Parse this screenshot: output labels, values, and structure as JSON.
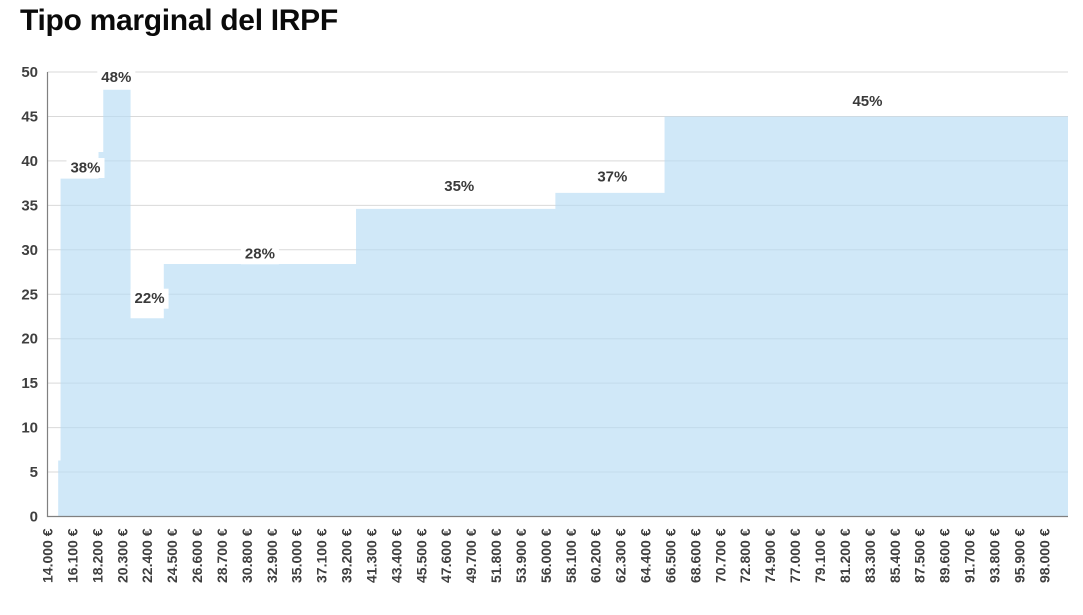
{
  "title": "Tipo marginal del IRPF",
  "chart_data": {
    "type": "area",
    "title": "Tipo marginal del IRPF",
    "description_of_series": "Marginal IRPF tax rate (%) as a step function of gross income (EUR)",
    "x_axis": {
      "range_min": 14000,
      "range_max": 100000,
      "tick_interval": 2100,
      "tick_labels": [
        "14.000 €",
        "16.100 €",
        "18.200 €",
        "20.300 €",
        "22.400 €",
        "24.500 €",
        "26.600 €",
        "28.700 €",
        "30.800 €",
        "32.900 €",
        "35.000 €",
        "37.100 €",
        "39.200 €",
        "41.300 €",
        "43.400 €",
        "45.500 €",
        "47.600 €",
        "49.700 €",
        "51.800 €",
        "53.900 €",
        "56.000 €",
        "58.100 €",
        "60.200 €",
        "62.300 €",
        "64.400 €",
        "66.500 €",
        "68.600 €",
        "70.700 €",
        "72.800 €",
        "74.900 €",
        "77.000 €",
        "79.100 €",
        "81.200 €",
        "83.300 €",
        "85.400 €",
        "87.500 €",
        "89.600 €",
        "91.700 €",
        "93.800 €",
        "95.900 €",
        "98.000 €"
      ]
    },
    "y_axis": {
      "min": 0,
      "max": 50,
      "step": 5,
      "tick_labels": [
        "0",
        "5",
        "10",
        "15",
        "20",
        "25",
        "30",
        "35",
        "40",
        "45",
        "50"
      ]
    },
    "grid": "horizontal",
    "legend": "none",
    "segments": [
      {
        "from": 14000,
        "to": 14900,
        "rate": 0
      },
      {
        "from": 14900,
        "to": 15100,
        "rate": 6.3
      },
      {
        "from": 15100,
        "to": 18300,
        "rate": 38
      },
      {
        "from": 18300,
        "to": 18700,
        "rate": 41
      },
      {
        "from": 18700,
        "to": 21000,
        "rate": 48
      },
      {
        "from": 21000,
        "to": 23800,
        "rate": 22.3
      },
      {
        "from": 23800,
        "to": 40000,
        "rate": 28.4
      },
      {
        "from": 40000,
        "to": 56800,
        "rate": 34.6
      },
      {
        "from": 56800,
        "to": 66000,
        "rate": 36.4
      },
      {
        "from": 66000,
        "to": 100000,
        "rate": 45
      }
    ],
    "point_labels": [
      {
        "text": "38%",
        "income": 17200,
        "value": 39.2
      },
      {
        "text": "48%",
        "income": 19800,
        "value": 49.4
      },
      {
        "text": "22%",
        "income": 22600,
        "value": 24.5
      },
      {
        "text": "28%",
        "income": 31900,
        "value": 29.5
      },
      {
        "text": "35%",
        "income": 48700,
        "value": 37.1
      },
      {
        "text": "37%",
        "income": 61600,
        "value": 38.2
      },
      {
        "text": "45%",
        "income": 83100,
        "value": 46.7
      }
    ],
    "colors": {
      "area_fill_rendered": "#D3E9F8",
      "area_fill_base": "#B7DCF4",
      "gridline": "#D9D9D9",
      "axis_line": "#808080",
      "tick_text": "#3F3F3F",
      "data_label_text": "#3A3A3A",
      "title_text": "#0A0A0A",
      "background": "#FFFFFF"
    }
  }
}
